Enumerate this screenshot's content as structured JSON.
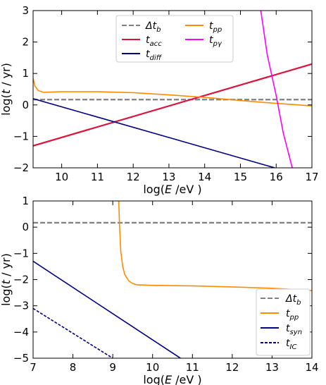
{
  "chart_data": [
    {
      "type": "line",
      "xlabel": "log(E /eV )",
      "ylabel": "log(t / yr)",
      "xlim": [
        9.2,
        17
      ],
      "ylim": [
        -2,
        3
      ],
      "xticks": [
        "10",
        "11",
        "12",
        "13",
        "14",
        "15",
        "16",
        "17"
      ],
      "yticks": [
        "−2",
        "−1",
        "0",
        "1",
        "2",
        "3"
      ],
      "grid": false,
      "legend_position": "top-center",
      "legend_columns": 2,
      "series": [
        {
          "name": "Δt_b",
          "color": "#808080",
          "style": "dashed",
          "x": [
            9.2,
            17
          ],
          "y": [
            0.17,
            0.17
          ]
        },
        {
          "name": "t_acc",
          "color": "#dc143c",
          "style": "solid",
          "x": [
            9.2,
            17
          ],
          "y": [
            -1.3,
            1.3
          ]
        },
        {
          "name": "t_diff",
          "color": "#000080",
          "style": "solid",
          "x": [
            9.2,
            15.96
          ],
          "y": [
            0.2,
            -2.0
          ]
        },
        {
          "name": "t_pp",
          "color": "#ff8c00",
          "style": "solid",
          "x": [
            9.2,
            9.25,
            9.35,
            9.5,
            10,
            11,
            12,
            13,
            14,
            15,
            16,
            17
          ],
          "y": [
            0.85,
            0.6,
            0.45,
            0.4,
            0.42,
            0.42,
            0.39,
            0.32,
            0.24,
            0.14,
            0.05,
            -0.03
          ]
        },
        {
          "name": "t_pγ",
          "color": "#ff00ff",
          "style": "solid",
          "x": [
            15.57,
            15.75,
            16.0,
            16.2,
            16.45
          ],
          "y": [
            3.0,
            1.6,
            0.3,
            -0.9,
            -2.0
          ]
        }
      ]
    },
    {
      "type": "line",
      "xlabel": "log(E /eV )",
      "ylabel": "log(t / yr)",
      "xlim": [
        7,
        14
      ],
      "ylim": [
        -5,
        1
      ],
      "xticks": [
        "7",
        "8",
        "9",
        "10",
        "11",
        "12",
        "13",
        "14"
      ],
      "yticks": [
        "−5",
        "−4",
        "−3",
        "−2",
        "−1",
        "0",
        "1"
      ],
      "grid": false,
      "legend_position": "lower-right",
      "legend_columns": 1,
      "series": [
        {
          "name": "Δt_b",
          "color": "#808080",
          "style": "dashed",
          "x": [
            7,
            14
          ],
          "y": [
            0.17,
            0.17
          ]
        },
        {
          "name": "t_pp",
          "color": "#ff8c00",
          "style": "solid",
          "x": [
            9.15,
            9.17,
            9.2,
            9.25,
            9.3,
            9.4,
            9.5,
            9.6,
            10,
            11,
            12,
            13,
            14
          ],
          "y": [
            1.0,
            0.1,
            -0.9,
            -1.5,
            -1.8,
            -2.05,
            -2.15,
            -2.2,
            -2.22,
            -2.24,
            -2.28,
            -2.33,
            -2.42
          ]
        },
        {
          "name": "t_syn",
          "color": "#000080",
          "style": "solid",
          "x": [
            7,
            10.7
          ],
          "y": [
            -1.3,
            -5.0
          ]
        },
        {
          "name": "t_IC",
          "color": "#000080",
          "style": "dashed",
          "x": [
            7,
            9.0
          ],
          "y": [
            -3.1,
            -5.0
          ]
        }
      ]
    }
  ]
}
